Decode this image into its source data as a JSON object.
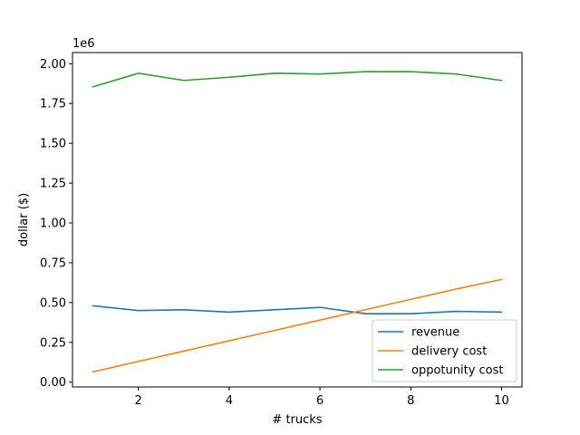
{
  "chart_data": {
    "type": "line",
    "title": "",
    "xlabel": "# trucks",
    "ylabel": "dollar ($)",
    "y_offset_label": "1e6",
    "xlim": [
      0.55,
      10.45
    ],
    "ylim": [
      -0.03,
      2.07
    ],
    "x_ticks": [
      2,
      4,
      6,
      8,
      10
    ],
    "x_tick_labels": [
      "2",
      "4",
      "6",
      "8",
      "10"
    ],
    "y_ticks": [
      0,
      0.25,
      0.5,
      0.75,
      1.0,
      1.25,
      1.5,
      1.75,
      2.0
    ],
    "y_tick_labels": [
      "0.00",
      "0.25",
      "0.50",
      "0.75",
      "1.00",
      "1.25",
      "1.50",
      "1.75",
      "2.00"
    ],
    "legend_position": "lower-right",
    "grid": false,
    "x": [
      1,
      2,
      3,
      4,
      5,
      6,
      7,
      8,
      9,
      10
    ],
    "series": [
      {
        "name": "revenue",
        "color": "#1f77b4",
        "values": [
          0.48,
          0.45,
          0.455,
          0.44,
          0.455,
          0.47,
          0.43,
          0.43,
          0.445,
          0.44
        ]
      },
      {
        "name": "delivery cost",
        "color": "#ff7f0e",
        "values": [
          0.065,
          0.13,
          0.195,
          0.26,
          0.325,
          0.39,
          0.455,
          0.52,
          0.585,
          0.645
        ]
      },
      {
        "name": "oppotunity cost",
        "color": "#2ca02c",
        "values": [
          1.855,
          1.94,
          1.895,
          1.915,
          1.94,
          1.935,
          1.95,
          1.95,
          1.935,
          1.895
        ]
      }
    ]
  }
}
